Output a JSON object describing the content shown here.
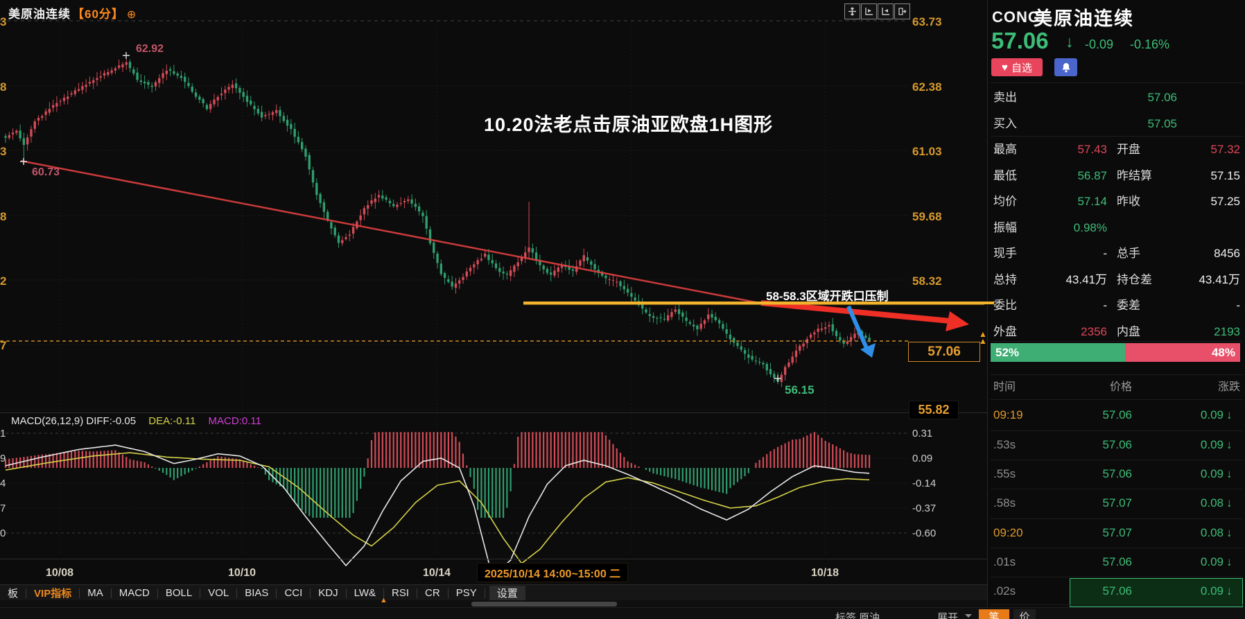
{
  "colors": {
    "green": "#3dbd78",
    "red": "#e0475a",
    "gold": "#d79a2e",
    "orange": "#f08a1e",
    "white": "#f0f0f0",
    "gray": "#8f8f8f",
    "candle_up": "#d24b57",
    "candle_down": "#2f9e6e",
    "diff_line": "#e8e8e8",
    "dea_line": "#d6d24a"
  },
  "chart_panel": {
    "title": "美原油连续",
    "period": "【60分】",
    "period_add_icon": "⊕",
    "top_right_icons": [
      "pan-icon",
      "indicator-pane-left-icon",
      "indicator-pane-right-icon",
      "pop-out-icon"
    ],
    "price_axis_labels": [
      "63.73",
      "62.38",
      "61.03",
      "59.68",
      "58.32"
    ],
    "price_axis_left_partials": [
      "3",
      "8",
      "3",
      "8",
      "2",
      "7"
    ],
    "current_price_box": "57.06",
    "low_axis_box": "55.82",
    "axis_marker": "▲",
    "date_labels": [
      "10/08",
      "10/10",
      "10/14",
      "10/18"
    ],
    "datetime_tooltip": "2025/10/14 14:00~15:00 二",
    "annotations": {
      "peak_price": "62.92",
      "start_low_price": "60.73",
      "swing_low_price": "56.15",
      "headline": "10.20法老点击原油亚欧盘1H图形",
      "resistance_label": "58-58.3区域开跌口压制"
    },
    "macd_header": {
      "formula_and_diff": "MACD(26,12,9) DIFF:-0.05",
      "dea": "DEA:-0.11",
      "macd": "MACD:0.11"
    },
    "macd_axis_labels": [
      "0.31",
      "0.09",
      "-0.14",
      "-0.37",
      "-0.60"
    ],
    "macd_axis_left_partials": [
      "1",
      "9",
      "4",
      "7",
      "0"
    ]
  },
  "indicator_toolbar": {
    "items": [
      {
        "label": "板",
        "active": false,
        "boxed": false
      },
      {
        "label": "VIP指标",
        "active": true,
        "boxed": false
      },
      {
        "label": "MA",
        "active": false,
        "boxed": false
      },
      {
        "label": "MACD",
        "active": false,
        "boxed": false
      },
      {
        "label": "BOLL",
        "active": false,
        "boxed": false
      },
      {
        "label": "VOL",
        "active": false,
        "boxed": false
      },
      {
        "label": "BIAS",
        "active": false,
        "boxed": false
      },
      {
        "label": "CCI",
        "active": false,
        "boxed": false
      },
      {
        "label": "KDJ",
        "active": false,
        "boxed": false
      },
      {
        "label": "LW&",
        "active": false,
        "boxed": false
      },
      {
        "label": "RSI",
        "active": false,
        "boxed": false
      },
      {
        "label": "CR",
        "active": false,
        "boxed": false
      },
      {
        "label": "PSY",
        "active": false,
        "boxed": false
      },
      {
        "label": "设置",
        "active": false,
        "boxed": true
      }
    ]
  },
  "bottom_bar": {
    "left_text": "标签 原油",
    "expand": "展开",
    "tabs": [
      {
        "label": "笔",
        "active": true
      },
      {
        "label": "价",
        "active": false
      }
    ]
  },
  "quote_panel": {
    "code": "CONC",
    "name": "美原油连续",
    "last": "57.06",
    "direction_arrow": "↓",
    "change": "-0.09",
    "change_pct": "-0.16%",
    "watch_button": "自选",
    "heart_icon": "♥",
    "rows": [
      {
        "l": "卖出",
        "lv": "57.06",
        "lvc": "green",
        "r": "",
        "rv": "-",
        "rvc": "white",
        "mid": true
      },
      {
        "l": "买入",
        "lv": "57.05",
        "lvc": "green",
        "r": "",
        "rv": "-",
        "rvc": "white",
        "mid": true
      },
      {
        "l": "最高",
        "lv": "57.43",
        "lvc": "red",
        "r": "开盘",
        "rv": "57.32",
        "rvc": "red",
        "mid": false
      },
      {
        "l": "最低",
        "lv": "56.87",
        "lvc": "green",
        "r": "昨结算",
        "rv": "57.15",
        "rvc": "white",
        "mid": false
      },
      {
        "l": "均价",
        "lv": "57.14",
        "lvc": "green",
        "r": "昨收",
        "rv": "57.25",
        "rvc": "white",
        "mid": false
      },
      {
        "l": "振幅",
        "lv": "0.98%",
        "lvc": "green",
        "r": "",
        "rv": "",
        "rvc": "white",
        "mid": false
      },
      {
        "l": "现手",
        "lv": "-",
        "lvc": "white",
        "r": "总手",
        "rv": "8456",
        "rvc": "white",
        "mid": false
      },
      {
        "l": "总持",
        "lv": "43.41万",
        "lvc": "white",
        "r": "持仓差",
        "rv": "43.41万",
        "rvc": "white",
        "mid": false
      },
      {
        "l": "委比",
        "lv": "-",
        "lvc": "white",
        "r": "委差",
        "rv": "-",
        "rvc": "white",
        "mid": false
      },
      {
        "l": "外盘",
        "lv": "2356",
        "lvc": "red",
        "r": "内盘",
        "rv": "2193",
        "rvc": "green",
        "mid": false
      }
    ],
    "volume_bar": {
      "left_pct": "52%",
      "right_pct": "48%",
      "left_ratio": 0.52
    },
    "tape": {
      "headers": [
        "时间",
        "价格",
        "涨跌"
      ],
      "down_arrow": "↓",
      "rows": [
        {
          "t": "09:19",
          "tc": "orange",
          "p": "57.06",
          "chg": "0.09",
          "highlight": false
        },
        {
          "t": ".53s",
          "tc": "gray",
          "p": "57.06",
          "chg": "0.09",
          "highlight": false
        },
        {
          "t": ".55s",
          "tc": "gray",
          "p": "57.06",
          "chg": "0.09",
          "highlight": false
        },
        {
          "t": ".58s",
          "tc": "gray",
          "p": "57.07",
          "chg": "0.08",
          "highlight": false
        },
        {
          "t": "09:20",
          "tc": "orange",
          "p": "57.07",
          "chg": "0.08",
          "highlight": false
        },
        {
          "t": ".01s",
          "tc": "gray",
          "p": "57.06",
          "chg": "0.09",
          "highlight": false
        },
        {
          "t": ".02s",
          "tc": "gray",
          "p": "57.06",
          "chg": "0.09",
          "highlight": true
        }
      ]
    }
  },
  "chart_data": [
    {
      "type": "candlestick",
      "title": "美原油连续 60分",
      "ylim": [
        55.82,
        63.73
      ],
      "y_gridlines": [
        63.73,
        62.38,
        61.03,
        59.68,
        58.32,
        56.97
      ],
      "x_tick_labels": [
        "10/08",
        "10/10",
        "10/14",
        "10/18"
      ],
      "last_price": 57.06,
      "labeled_high": 62.92,
      "labeled_low": 56.15,
      "labeled_early_wick_low": 60.73,
      "candle_count": 237,
      "close_keyframes": [
        [
          0,
          61.3
        ],
        [
          3,
          61.42
        ],
        [
          5,
          61.12
        ],
        [
          8,
          61.62
        ],
        [
          14,
          62.02
        ],
        [
          20,
          62.3
        ],
        [
          26,
          62.58
        ],
        [
          33,
          62.85
        ],
        [
          36,
          62.5
        ],
        [
          40,
          62.35
        ],
        [
          44,
          62.7
        ],
        [
          48,
          62.55
        ],
        [
          52,
          62.15
        ],
        [
          55,
          61.9
        ],
        [
          58,
          62.15
        ],
        [
          62,
          62.4
        ],
        [
          66,
          62.05
        ],
        [
          70,
          61.72
        ],
        [
          74,
          61.85
        ],
        [
          78,
          61.45
        ],
        [
          82,
          60.9
        ],
        [
          85,
          60.1
        ],
        [
          88,
          59.55
        ],
        [
          91,
          59.1
        ],
        [
          94,
          59.28
        ],
        [
          98,
          59.82
        ],
        [
          102,
          60.1
        ],
        [
          106,
          59.85
        ],
        [
          110,
          60.02
        ],
        [
          114,
          59.65
        ],
        [
          116,
          59.1
        ],
        [
          119,
          58.45
        ],
        [
          122,
          58.18
        ],
        [
          125,
          58.4
        ],
        [
          128,
          58.65
        ],
        [
          131,
          58.85
        ],
        [
          134,
          58.55
        ],
        [
          137,
          58.42
        ],
        [
          140,
          58.7
        ],
        [
          143,
          59.0
        ],
        [
          146,
          58.62
        ],
        [
          149,
          58.42
        ],
        [
          152,
          58.66
        ],
        [
          155,
          58.5
        ],
        [
          158,
          58.82
        ],
        [
          161,
          58.55
        ],
        [
          164,
          58.35
        ],
        [
          167,
          58.28
        ],
        [
          170,
          58.05
        ],
        [
          173,
          57.8
        ],
        [
          176,
          57.55
        ],
        [
          180,
          57.5
        ],
        [
          183,
          57.72
        ],
        [
          186,
          57.45
        ],
        [
          189,
          57.3
        ],
        [
          192,
          57.6
        ],
        [
          195,
          57.4
        ],
        [
          198,
          57.1
        ],
        [
          201,
          56.85
        ],
        [
          204,
          56.65
        ],
        [
          207,
          56.55
        ],
        [
          209,
          56.35
        ],
        [
          211,
          56.22
        ],
        [
          213,
          56.5
        ],
        [
          216,
          56.85
        ],
        [
          219,
          57.1
        ],
        [
          222,
          57.3
        ],
        [
          225,
          57.38
        ],
        [
          227,
          57.15
        ],
        [
          229,
          56.98
        ],
        [
          231,
          57.12
        ],
        [
          233,
          57.25
        ],
        [
          236,
          57.06
        ]
      ],
      "wick_overrides": {
        "5": {
          "low": 60.73
        },
        "33": {
          "high": 62.92
        },
        "143": {
          "high": 59.95
        },
        "211": {
          "low": 56.15
        }
      }
    },
    {
      "type": "macd",
      "params": "26,12,9",
      "diff": -0.05,
      "dea": -0.11,
      "macd": 0.11,
      "y_ticks": [
        0.31,
        0.09,
        -0.14,
        -0.37,
        -0.6
      ],
      "diff_keyframes": [
        [
          0,
          0.02
        ],
        [
          10,
          0.1
        ],
        [
          20,
          0.17
        ],
        [
          30,
          0.21
        ],
        [
          38,
          0.15
        ],
        [
          46,
          0.04
        ],
        [
          52,
          0.08
        ],
        [
          58,
          0.13
        ],
        [
          64,
          0.11
        ],
        [
          70,
          0.02
        ],
        [
          76,
          -0.18
        ],
        [
          82,
          -0.45
        ],
        [
          88,
          -0.7
        ],
        [
          93,
          -0.9
        ],
        [
          98,
          -0.72
        ],
        [
          103,
          -0.4
        ],
        [
          108,
          -0.12
        ],
        [
          114,
          0.06
        ],
        [
          119,
          0.09
        ],
        [
          124,
          0.0
        ],
        [
          128,
          -0.35
        ],
        [
          133,
          -1.0
        ],
        [
          138,
          -0.85
        ],
        [
          143,
          -0.45
        ],
        [
          148,
          -0.15
        ],
        [
          153,
          0.02
        ],
        [
          158,
          0.07
        ],
        [
          164,
          0.02
        ],
        [
          170,
          -0.06
        ],
        [
          176,
          -0.15
        ],
        [
          183,
          -0.26
        ],
        [
          190,
          -0.38
        ],
        [
          197,
          -0.48
        ],
        [
          203,
          -0.38
        ],
        [
          209,
          -0.22
        ],
        [
          215,
          -0.08
        ],
        [
          221,
          0.02
        ],
        [
          227,
          -0.01
        ],
        [
          232,
          -0.04
        ],
        [
          236,
          -0.05
        ]
      ],
      "dea_keyframes": [
        [
          0,
          -0.02
        ],
        [
          12,
          0.05
        ],
        [
          24,
          0.11
        ],
        [
          34,
          0.14
        ],
        [
          44,
          0.1
        ],
        [
          54,
          0.08
        ],
        [
          64,
          0.07
        ],
        [
          72,
          0.01
        ],
        [
          80,
          -0.18
        ],
        [
          88,
          -0.42
        ],
        [
          95,
          -0.62
        ],
        [
          100,
          -0.72
        ],
        [
          106,
          -0.55
        ],
        [
          112,
          -0.32
        ],
        [
          118,
          -0.16
        ],
        [
          124,
          -0.12
        ],
        [
          130,
          -0.32
        ],
        [
          136,
          -0.65
        ],
        [
          141,
          -0.88
        ],
        [
          146,
          -0.75
        ],
        [
          152,
          -0.5
        ],
        [
          158,
          -0.28
        ],
        [
          164,
          -0.13
        ],
        [
          170,
          -0.09
        ],
        [
          177,
          -0.14
        ],
        [
          184,
          -0.22
        ],
        [
          191,
          -0.3
        ],
        [
          198,
          -0.37
        ],
        [
          205,
          -0.35
        ],
        [
          211,
          -0.27
        ],
        [
          217,
          -0.18
        ],
        [
          224,
          -0.12
        ],
        [
          230,
          -0.1
        ],
        [
          236,
          -0.11
        ]
      ],
      "hist_formula": "2*(DIFF-DEA)",
      "hist_clamp": [
        -0.46,
        0.33
      ]
    }
  ]
}
